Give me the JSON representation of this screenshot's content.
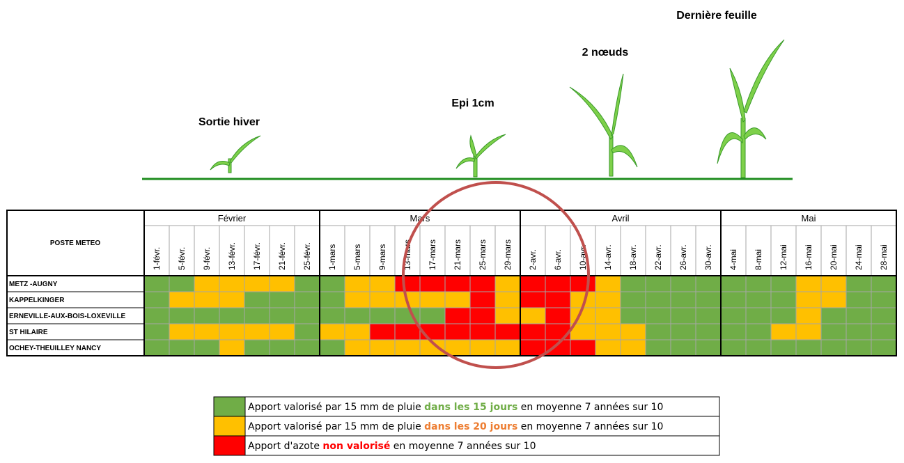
{
  "stages": [
    {
      "label": "Sortie hiver"
    },
    {
      "label": "Epi 1cm"
    },
    {
      "label": "2 nœuds"
    },
    {
      "label": "Dernière feuille"
    }
  ],
  "table": {
    "station_header": "POSTE METEO",
    "months": [
      {
        "name": "Février",
        "dates": [
          "1-févr.",
          "5-févr.",
          "9-févr.",
          "13-févr.",
          "17-févr.",
          "21-févr.",
          "25-févr."
        ]
      },
      {
        "name": "Mars",
        "dates": [
          "1-mars",
          "5-mars",
          "9-mars",
          "13-mars",
          "17-mars",
          "21-mars",
          "25-mars",
          "29-mars"
        ]
      },
      {
        "name": "Avril",
        "dates": [
          "2-avr.",
          "6-avr.",
          "10-avr.",
          "14-avr.",
          "18-avr.",
          "22-avr.",
          "26-avr.",
          "30-avr."
        ]
      },
      {
        "name": "Mai",
        "dates": [
          "4-mai",
          "8-mai",
          "12-mai",
          "16-mai",
          "20-mai",
          "24-mai",
          "28-mai"
        ]
      }
    ],
    "rows": [
      {
        "station": "METZ -AUGNY",
        "cells": [
          "#70ad47",
          "#70ad47",
          "#ffc000",
          "#ffc000",
          "#ffc000",
          "#ffc000",
          "#70ad47",
          "#70ad47",
          "#ffc000",
          "#ffc000",
          "#ff0000",
          "#ff0000",
          "#ff0000",
          "#ff0000",
          "#ffc000",
          "#ff0000",
          "#ff0000",
          "#ff0000",
          "#ffc000",
          "#70ad47",
          "#70ad47",
          "#70ad47",
          "#70ad47",
          "#70ad47",
          "#70ad47",
          "#70ad47",
          "#ffc000",
          "#ffc000",
          "#70ad47",
          "#70ad47"
        ]
      },
      {
        "station": "KAPPELKINGER",
        "cells": [
          "#70ad47",
          "#ffc000",
          "#ffc000",
          "#ffc000",
          "#70ad47",
          "#70ad47",
          "#70ad47",
          "#70ad47",
          "#ffc000",
          "#ffc000",
          "#ffc000",
          "#ffc000",
          "#ffc000",
          "#ff0000",
          "#ffc000",
          "#ff0000",
          "#ff0000",
          "#ffc000",
          "#ffc000",
          "#70ad47",
          "#70ad47",
          "#70ad47",
          "#70ad47",
          "#70ad47",
          "#70ad47",
          "#70ad47",
          "#ffc000",
          "#ffc000",
          "#70ad47",
          "#70ad47"
        ]
      },
      {
        "station": "ERNEVILLE-AUX-BOIS-LOXEVILLE",
        "cells": [
          "#70ad47",
          "#70ad47",
          "#70ad47",
          "#70ad47",
          "#70ad47",
          "#70ad47",
          "#70ad47",
          "#70ad47",
          "#70ad47",
          "#70ad47",
          "#70ad47",
          "#70ad47",
          "#ff0000",
          "#ff0000",
          "#ffc000",
          "#ffc000",
          "#ff0000",
          "#ffc000",
          "#ffc000",
          "#70ad47",
          "#70ad47",
          "#70ad47",
          "#70ad47",
          "#70ad47",
          "#70ad47",
          "#70ad47",
          "#ffc000",
          "#70ad47",
          "#70ad47",
          "#70ad47"
        ]
      },
      {
        "station": "ST HILAIRE",
        "cells": [
          "#70ad47",
          "#ffc000",
          "#ffc000",
          "#ffc000",
          "#ffc000",
          "#ffc000",
          "#70ad47",
          "#ffc000",
          "#ffc000",
          "#ff0000",
          "#ff0000",
          "#ff0000",
          "#ff0000",
          "#ff0000",
          "#ff0000",
          "#ff0000",
          "#ff0000",
          "#ffc000",
          "#ffc000",
          "#ffc000",
          "#70ad47",
          "#70ad47",
          "#70ad47",
          "#70ad47",
          "#70ad47",
          "#ffc000",
          "#ffc000",
          "#70ad47",
          "#70ad47",
          "#70ad47"
        ]
      },
      {
        "station": "OCHEY-THEUILLEY NANCY",
        "cells": [
          "#70ad47",
          "#70ad47",
          "#70ad47",
          "#ffc000",
          "#70ad47",
          "#70ad47",
          "#70ad47",
          "#70ad47",
          "#ffc000",
          "#ffc000",
          "#ffc000",
          "#ffc000",
          "#ffc000",
          "#ffc000",
          "#ffc000",
          "#ff0000",
          "#ff0000",
          "#ff0000",
          "#ffc000",
          "#ffc000",
          "#70ad47",
          "#70ad47",
          "#70ad47",
          "#70ad47",
          "#70ad47",
          "#70ad47",
          "#70ad47",
          "#70ad47",
          "#70ad47",
          "#70ad47"
        ]
      }
    ]
  },
  "legend": [
    {
      "color": "#70ad47",
      "parts": [
        {
          "text": "Apport valorisé par 15 mm de pluie "
        },
        {
          "text": "dans les 15 jours",
          "color": "#70ad47"
        },
        {
          "text": " en moyenne 7 années sur 10"
        }
      ]
    },
    {
      "color": "#ffc000",
      "parts": [
        {
          "text": "Apport valorisé par 15 mm de pluie "
        },
        {
          "text": "dans les 20 jours",
          "color": "#ed7d31"
        },
        {
          "text": " en moyenne 7 années sur 10"
        }
      ]
    },
    {
      "color": "#ff0000",
      "parts": [
        {
          "text": "Apport d'azote "
        },
        {
          "text": "non valorisé",
          "color": "#ff0000"
        },
        {
          "text": " en moyenne 7 années sur 10"
        }
      ]
    }
  ]
}
